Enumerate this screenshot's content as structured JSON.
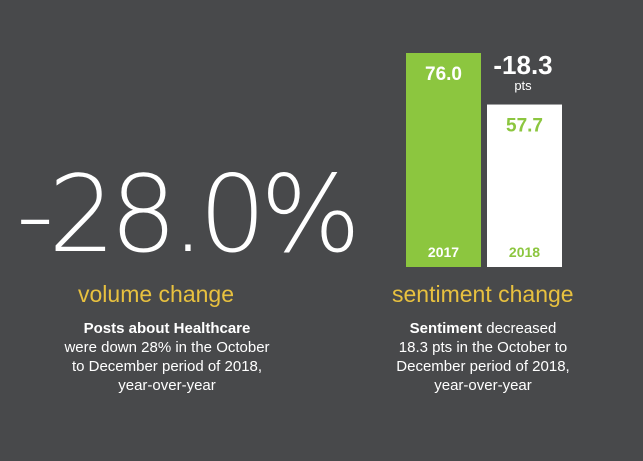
{
  "volume": {
    "value": "-28.0%",
    "label": "volume change",
    "caption_bold": "Posts about Healthcare",
    "caption_lines": [
      "were down 28% in the October",
      "to December period of 2018,",
      "year-over-year"
    ]
  },
  "sentiment": {
    "label": "sentiment change",
    "delta_value": "-18.3",
    "delta_unit": "pts",
    "caption_bold": "Sentiment",
    "caption_first_rest": " decreased",
    "caption_lines": [
      "18.3 pts in the October to",
      "December period of 2018,",
      "year-over-year"
    ]
  },
  "colors": {
    "background": "#48494b",
    "green": "#8cc63f",
    "white_bar": "#ffffff",
    "accent_yellow": "#e8c13f"
  },
  "chart_data": {
    "type": "bar",
    "categories": [
      "2017",
      "2018"
    ],
    "values": [
      76.0,
      57.7
    ],
    "value_labels": [
      "76.0",
      "57.7"
    ],
    "bar_colors": [
      "#8cc63f",
      "#ffffff"
    ],
    "label_colors": [
      "#ffffff",
      "#8cc63f"
    ],
    "ylim": [
      0,
      76.0
    ],
    "title": "",
    "xlabel": "",
    "ylabel": ""
  }
}
